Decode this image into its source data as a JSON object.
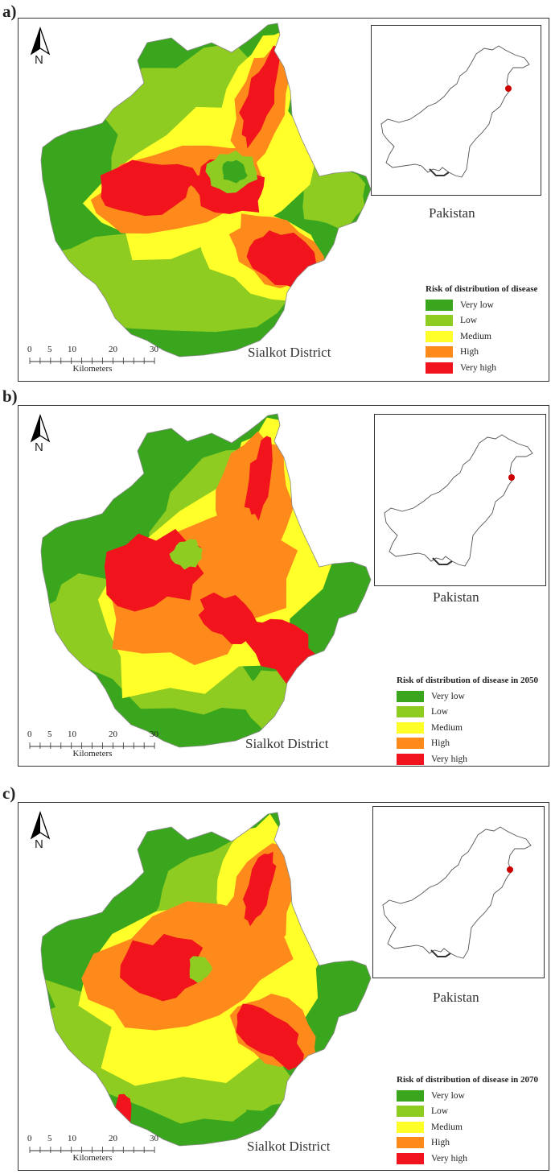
{
  "panels": [
    {
      "label": "a)",
      "legend_title": "Risk of distribution of disease",
      "district": "Sialkot District",
      "inset_label": "Pakistan"
    },
    {
      "label": "b)",
      "legend_title": "Risk of distribution of disease in 2050",
      "district": "Sialkot District",
      "inset_label": "Pakistan"
    },
    {
      "label": "c)",
      "legend_title": "Risk of distribution of disease in 2070",
      "district": "Sialkot District",
      "inset_label": "Pakistan"
    }
  ],
  "legend_classes": [
    {
      "label": "Very low",
      "color": "#3aa61e"
    },
    {
      "label": "Low",
      "color": "#8fcc22"
    },
    {
      "label": "Medium",
      "color": "#ffff2a"
    },
    {
      "label": "High",
      "color": "#ff8a1c"
    },
    {
      "label": "Very high",
      "color": "#f2141c"
    }
  ],
  "scale": {
    "ticks": [
      "0",
      "5",
      "10",
      "20",
      "30"
    ],
    "unit": "Kilometers"
  },
  "north_label": "N",
  "location_marker_color": "#cc0000"
}
